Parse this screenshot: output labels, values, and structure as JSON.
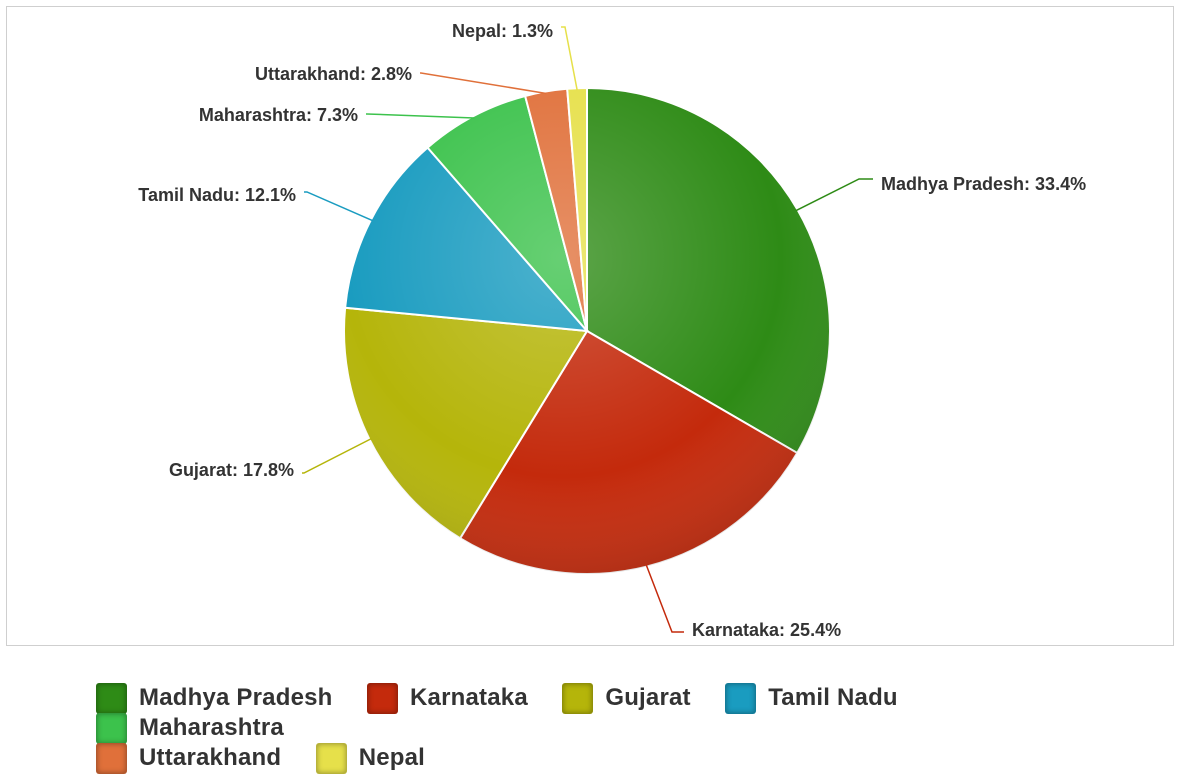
{
  "chart_data": {
    "type": "pie",
    "title": "",
    "slices": [
      {
        "name": "Madhya Pradesh",
        "value": 33.4,
        "label": "Madhya Pradesh: 33.4%",
        "color": "#2e8b16"
      },
      {
        "name": "Karnataka",
        "value": 25.4,
        "label": "Karnataka: 25.4%",
        "color": "#c42a0c"
      },
      {
        "name": "Gujarat",
        "value": 17.8,
        "label": "Gujarat: 17.8%",
        "color": "#b5b50a"
      },
      {
        "name": "Tamil Nadu",
        "value": 12.1,
        "label": "Tamil Nadu: 12.1%",
        "color": "#1a9cc0"
      },
      {
        "name": "Maharashtra",
        "value": 7.3,
        "label": "Maharashtra: 7.3%",
        "color": "#3cc24c"
      },
      {
        "name": "Uttarakhand",
        "value": 2.8,
        "label": "Uttarakhand: 2.8%",
        "color": "#e0703a"
      },
      {
        "name": "Nepal",
        "value": 1.3,
        "label": "Nepal: 1.3%",
        "color": "#e6e04a"
      }
    ],
    "legend_position": "bottom"
  }
}
